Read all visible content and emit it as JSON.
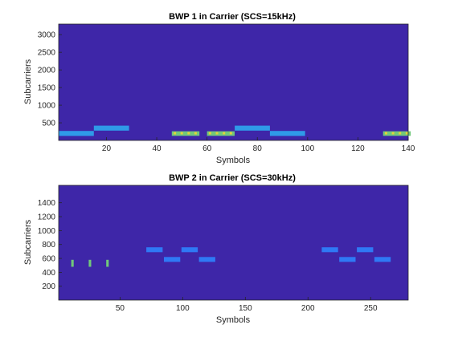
{
  "colors": {
    "background_level": "#3e26a8",
    "low_level": "#2f79f5",
    "mid_level": "#2f9ae8",
    "high_level": "#71c87a",
    "peak_level": "#e4d13a"
  },
  "chart_data": [
    {
      "type": "heatmap",
      "title": "BWP 1 in Carrier (SCS=15kHz)",
      "xlabel": "Symbols",
      "ylabel": "Subcarriers",
      "xlim": [
        1,
        140
      ],
      "ylim": [
        1,
        3300
      ],
      "xticks": [
        20,
        40,
        60,
        80,
        100,
        120,
        140
      ],
      "yticks": [
        500,
        1000,
        1500,
        2000,
        2500,
        3000
      ],
      "grid": false,
      "regions": [
        {
          "x": [
            1,
            15
          ],
          "y": [
            130,
            270
          ],
          "level": "mid"
        },
        {
          "x": [
            15,
            29
          ],
          "y": [
            280,
            420
          ],
          "level": "mid"
        },
        {
          "x": [
            71,
            85
          ],
          "y": [
            280,
            420
          ],
          "level": "mid"
        },
        {
          "x": [
            85,
            99
          ],
          "y": [
            130,
            270
          ],
          "level": "mid"
        },
        {
          "x": [
            46,
            57
          ],
          "y": [
            130,
            260
          ],
          "level": "high"
        },
        {
          "x": [
            60,
            71
          ],
          "y": [
            130,
            260
          ],
          "level": "high"
        },
        {
          "x": [
            130,
            141
          ],
          "y": [
            130,
            260
          ],
          "level": "high"
        }
      ]
    },
    {
      "type": "heatmap",
      "title": "BWP 2 in Carrier (SCS=30kHz)",
      "xlabel": "Symbols",
      "ylabel": "Subcarriers",
      "xlim": [
        1,
        280
      ],
      "ylim": [
        1,
        1650
      ],
      "xticks": [
        50,
        100,
        150,
        200,
        250
      ],
      "yticks": [
        200,
        400,
        600,
        800,
        1000,
        1200,
        1400
      ],
      "grid": false,
      "regions": [
        {
          "x": [
            11,
            13
          ],
          "y": [
            480,
            580
          ],
          "level": "high"
        },
        {
          "x": [
            25,
            27
          ],
          "y": [
            480,
            580
          ],
          "level": "high"
        },
        {
          "x": [
            39,
            41
          ],
          "y": [
            480,
            580
          ],
          "level": "high"
        },
        {
          "x": [
            71,
            84
          ],
          "y": [
            690,
            760
          ],
          "level": "low"
        },
        {
          "x": [
            85,
            98
          ],
          "y": [
            550,
            620
          ],
          "level": "low"
        },
        {
          "x": [
            99,
            112
          ],
          "y": [
            690,
            760
          ],
          "level": "low"
        },
        {
          "x": [
            113,
            126
          ],
          "y": [
            550,
            620
          ],
          "level": "low"
        },
        {
          "x": [
            211,
            224
          ],
          "y": [
            690,
            760
          ],
          "level": "low"
        },
        {
          "x": [
            225,
            238
          ],
          "y": [
            550,
            620
          ],
          "level": "low"
        },
        {
          "x": [
            239,
            252
          ],
          "y": [
            690,
            760
          ],
          "level": "low"
        },
        {
          "x": [
            253,
            266
          ],
          "y": [
            550,
            620
          ],
          "level": "low"
        }
      ]
    }
  ]
}
